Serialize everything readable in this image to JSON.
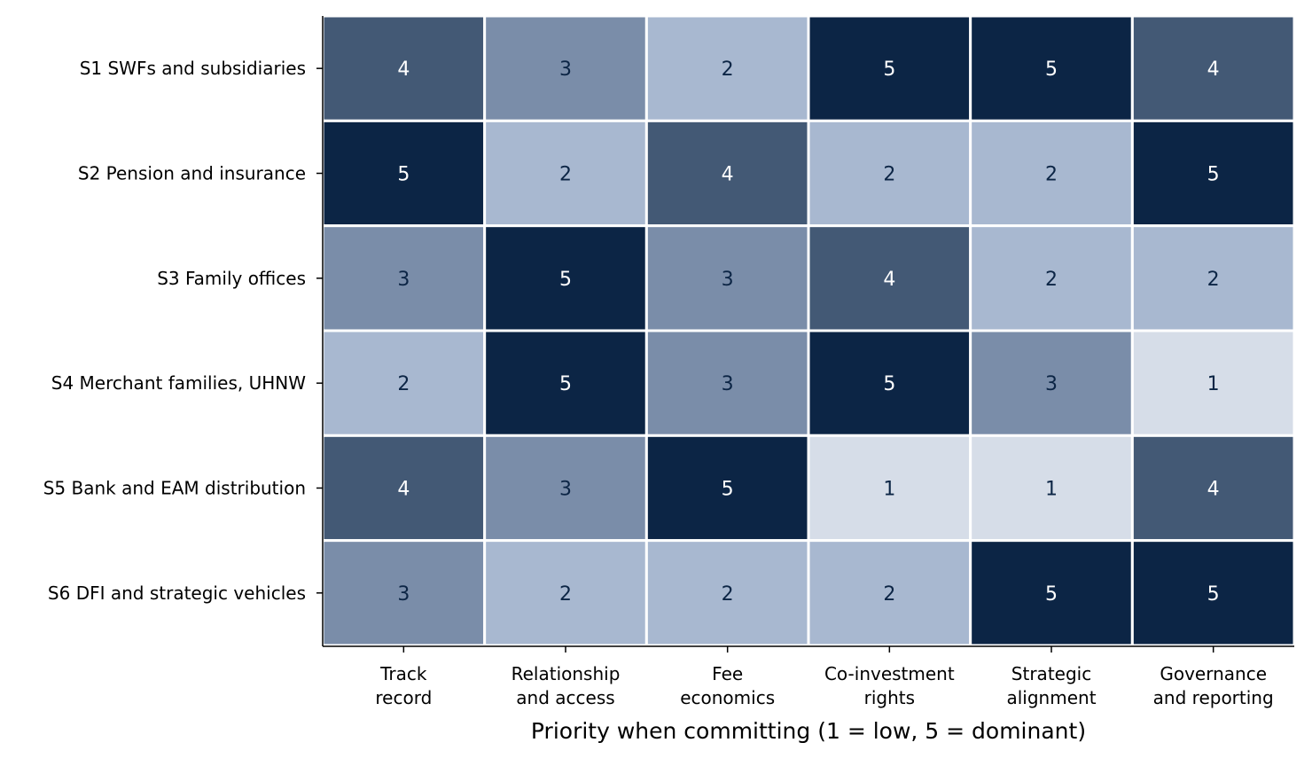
{
  "chart_data": {
    "type": "heatmap",
    "title": "",
    "xlabel": "Priority when committing (1 = low, 5 = dominant)",
    "ylabel": "",
    "rows": [
      "S1 SWFs and subsidiaries",
      "S2 Pension and insurance",
      "S3 Family offices",
      "S4 Merchant families, UHNW",
      "S5 Bank and EAM distribution",
      "S6 DFI and strategic vehicles"
    ],
    "columns": [
      [
        "Track",
        "record"
      ],
      [
        "Relationship",
        "and access"
      ],
      [
        "Fee",
        "economics"
      ],
      [
        "Co-investment",
        "rights"
      ],
      [
        "Strategic",
        "alignment"
      ],
      [
        "Governance",
        "and reporting"
      ]
    ],
    "values": [
      [
        4,
        3,
        2,
        5,
        5,
        4
      ],
      [
        5,
        2,
        4,
        2,
        2,
        5
      ],
      [
        3,
        5,
        3,
        4,
        2,
        2
      ],
      [
        2,
        5,
        3,
        5,
        3,
        1
      ],
      [
        4,
        3,
        5,
        1,
        1,
        4
      ],
      [
        3,
        2,
        2,
        2,
        5,
        5
      ]
    ],
    "value_range": [
      1,
      5
    ],
    "colors": {
      "1": "#d6dde8",
      "2": "#a8b8d0",
      "3": "#7a8da9",
      "4": "#435975",
      "5": "#0c2545"
    },
    "text_colors": {
      "dark": "#0c2545",
      "light": "#ffffff"
    },
    "grid": false,
    "legend": "none"
  }
}
